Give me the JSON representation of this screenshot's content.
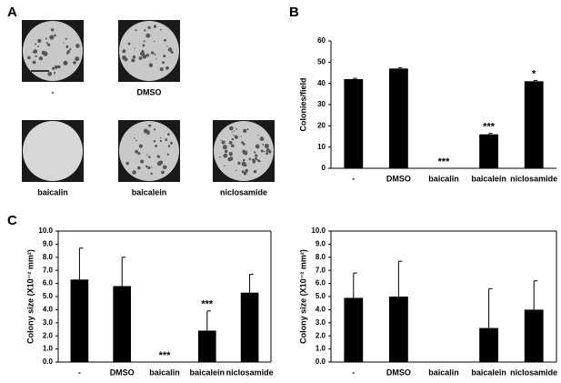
{
  "figure": {
    "panel_labels": [
      "A",
      "B",
      "C"
    ],
    "images": [
      {
        "label": "-"
      },
      {
        "label": "DMSO"
      },
      {
        "label": "baicalin"
      },
      {
        "label": "baicalein"
      },
      {
        "label": "niclosamide"
      }
    ]
  },
  "chart_data": [
    {
      "type": "bar",
      "y_label": "Colonies/field",
      "color": "#000000",
      "frame": false,
      "categories": [
        "-",
        "DMSO",
        "baicalin",
        "baicalein",
        "niclosamide"
      ],
      "values": [
        42,
        47,
        0,
        16,
        41
      ],
      "errors": [
        0.4,
        0.4,
        0,
        0.4,
        0.4
      ],
      "ylim": [
        0,
        60
      ],
      "yticks": [
        0,
        10,
        20,
        30,
        40,
        50,
        60
      ],
      "annotations": [
        {
          "text": "***",
          "category": "baicalin"
        },
        {
          "text": "***",
          "category": "baicalein"
        },
        {
          "text": "*",
          "category": "niclosamide"
        }
      ]
    },
    {
      "type": "bar",
      "y_label": "Colony size (X10⁻² mm²)",
      "color": "#000000",
      "frame": true,
      "categories": [
        "-",
        "DMSO",
        "baicalin",
        "baicalein",
        "niclosamide"
      ],
      "values": [
        6.3,
        5.8,
        0,
        2.4,
        5.3
      ],
      "errors": [
        2.4,
        2.2,
        0,
        1.5,
        1.4
      ],
      "ylim": [
        0,
        10
      ],
      "yticks": [
        {
          "value": 0,
          "label": "0.0"
        },
        {
          "value": 1,
          "label": "1.0"
        },
        {
          "value": 2,
          "label": "2.0"
        },
        {
          "value": 3,
          "label": "3.0"
        },
        {
          "value": 4,
          "label": "4.0"
        },
        {
          "value": 5,
          "label": "5.0"
        },
        {
          "value": 6,
          "label": "6.0"
        },
        {
          "value": 7,
          "label": "7.0"
        },
        {
          "value": 8,
          "label": "8.0"
        },
        {
          "value": 9,
          "label": "9.0"
        },
        {
          "value": 10,
          "label": "10.0"
        }
      ],
      "annotations": [
        {
          "text": "***",
          "category": "baicalin"
        },
        {
          "text": "***",
          "category": "baicalein"
        }
      ]
    },
    {
      "type": "bar",
      "y_label": "Colony size (X10⁻² mm²)",
      "color": "#000000",
      "frame": true,
      "categories": [
        "-",
        "DMSO",
        "baicalin",
        "baicalein",
        "niclosamide"
      ],
      "values": [
        4.9,
        5.0,
        0,
        2.6,
        4.0
      ],
      "errors": [
        1.9,
        2.7,
        0,
        3.0,
        2.2
      ],
      "ylim": [
        0,
        10
      ],
      "yticks": [
        {
          "value": 0,
          "label": "0.0"
        },
        {
          "value": 1,
          "label": "1.0"
        },
        {
          "value": 2,
          "label": "2.0"
        },
        {
          "value": 3,
          "label": "3.0"
        },
        {
          "value": 4,
          "label": "4.0"
        },
        {
          "value": 5,
          "label": "5.0"
        },
        {
          "value": 6,
          "label": "6.0"
        },
        {
          "value": 7,
          "label": "7.0"
        },
        {
          "value": 8,
          "label": "8.0"
        },
        {
          "value": 9,
          "label": "9.0"
        },
        {
          "value": 10,
          "label": "10.0"
        }
      ],
      "annotations": []
    }
  ]
}
